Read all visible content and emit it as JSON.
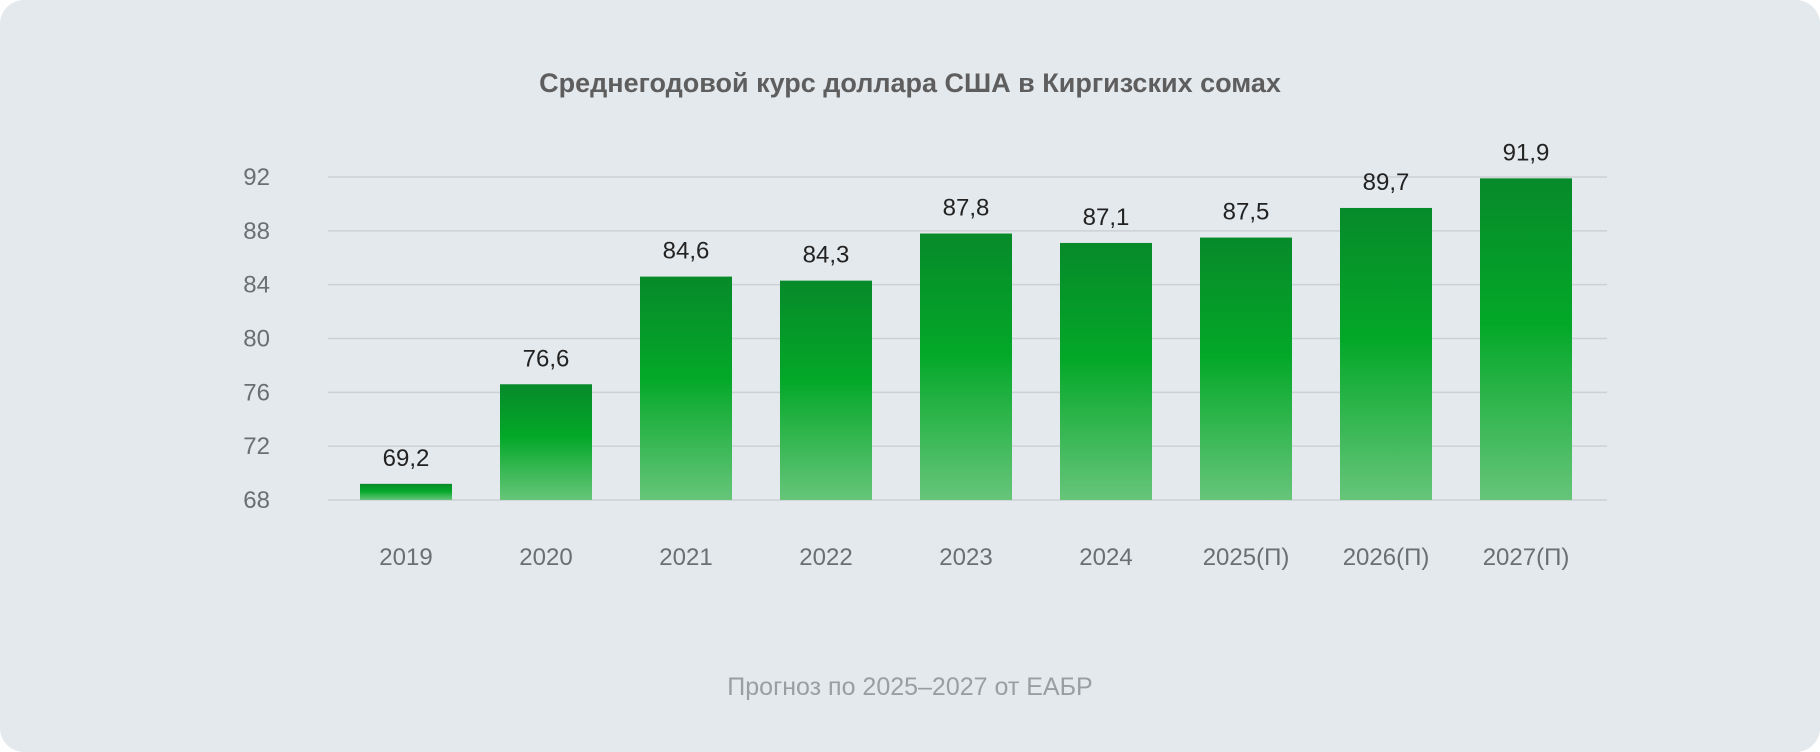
{
  "chart_data": {
    "type": "bar",
    "title": "Среднегодовой курс доллара США в Киргизских сомах",
    "categories": [
      "2019",
      "2020",
      "2021",
      "2022",
      "2023",
      "2024",
      "2025(П)",
      "2026(П)",
      "2027(П)"
    ],
    "values": [
      69.2,
      76.6,
      84.6,
      84.3,
      87.8,
      87.1,
      87.5,
      89.7,
      91.9
    ],
    "value_labels": [
      "69,2",
      "76,6",
      "84,6",
      "84,3",
      "87,8",
      "87,1",
      "87,5",
      "89,7",
      "91,9"
    ],
    "yticks": [
      68,
      72,
      76,
      80,
      84,
      88,
      92
    ],
    "ylim": [
      68,
      92
    ],
    "xlabel": "",
    "ylabel": "",
    "grid": true,
    "colors": {
      "bar_top": "#078a2a",
      "bar_mid": "#03a828",
      "bar_bottom": "#66c57a",
      "grid": "#cdd1d5"
    }
  },
  "footer": "Прогноз по 2025–2027 от ЕАБР"
}
